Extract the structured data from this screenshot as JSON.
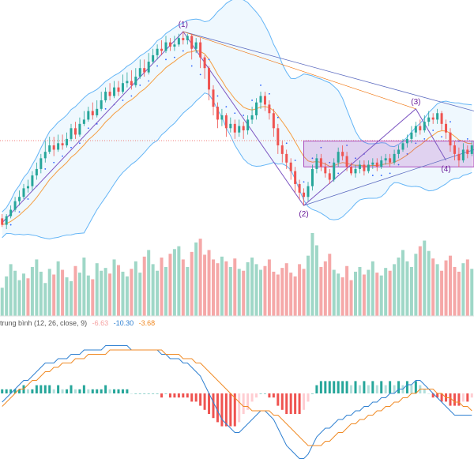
{
  "chart_data": {
    "type": "candlestick",
    "price_panel": {
      "candles": [
        [
          40,
          37,
          42,
          36
        ],
        [
          37,
          41,
          42,
          35
        ],
        [
          41,
          44,
          46,
          40
        ],
        [
          44,
          48,
          50,
          43
        ],
        [
          48,
          50,
          53,
          46
        ],
        [
          50,
          54,
          56,
          49
        ],
        [
          54,
          55,
          58,
          52
        ],
        [
          55,
          60,
          62,
          53
        ],
        [
          60,
          63,
          66,
          58
        ],
        [
          63,
          68,
          70,
          61
        ],
        [
          68,
          71,
          76,
          66
        ],
        [
          71,
          74,
          78,
          70
        ],
        [
          74,
          72,
          78,
          69
        ],
        [
          72,
          75,
          79,
          71
        ],
        [
          75,
          74,
          79,
          72
        ],
        [
          74,
          77,
          80,
          73
        ],
        [
          77,
          82,
          84,
          76
        ],
        [
          82,
          79,
          85,
          77
        ],
        [
          79,
          84,
          87,
          78
        ],
        [
          84,
          86,
          90,
          83
        ],
        [
          86,
          90,
          92,
          85
        ],
        [
          90,
          88,
          94,
          86
        ],
        [
          88,
          91,
          95,
          87
        ],
        [
          91,
          95,
          99,
          90
        ],
        [
          95,
          99,
          101,
          94
        ],
        [
          99,
          97,
          103,
          95
        ],
        [
          97,
          101,
          104,
          96
        ],
        [
          101,
          99,
          104,
          97
        ],
        [
          99,
          103,
          107,
          98
        ],
        [
          103,
          104,
          108,
          101
        ],
        [
          104,
          102,
          109,
          100
        ],
        [
          102,
          106,
          110,
          101
        ],
        [
          106,
          110,
          114,
          105
        ],
        [
          110,
          108,
          114,
          106
        ],
        [
          108,
          113,
          117,
          107
        ],
        [
          113,
          116,
          119,
          112
        ],
        [
          116,
          119,
          121,
          114
        ],
        [
          119,
          118,
          123,
          116
        ],
        [
          118,
          122,
          125,
          117
        ],
        [
          122,
          120,
          124,
          118
        ],
        [
          120,
          121,
          125,
          118
        ],
        [
          121,
          124,
          126,
          120
        ],
        [
          124,
          123,
          127,
          121
        ],
        [
          123,
          125,
          126,
          121
        ],
        [
          125,
          119,
          126,
          114
        ],
        [
          119,
          122,
          124,
          117
        ],
        [
          122,
          115,
          124,
          110
        ],
        [
          115,
          110,
          116,
          105
        ],
        [
          110,
          100,
          111,
          95
        ],
        [
          100,
          92,
          102,
          88
        ],
        [
          92,
          86,
          94,
          82
        ],
        [
          86,
          88,
          91,
          83
        ],
        [
          88,
          82,
          89,
          78
        ],
        [
          82,
          84,
          87,
          80
        ],
        [
          84,
          80,
          86,
          77
        ],
        [
          80,
          83,
          86,
          78
        ],
        [
          83,
          81,
          85,
          77
        ],
        [
          81,
          86,
          88,
          79
        ],
        [
          86,
          88,
          92,
          84
        ],
        [
          88,
          94,
          96,
          86
        ],
        [
          94,
          97,
          99,
          91
        ],
        [
          97,
          93,
          99,
          90
        ],
        [
          93,
          89,
          95,
          86
        ],
        [
          89,
          82,
          91,
          78
        ],
        [
          82,
          74,
          84,
          70
        ],
        [
          74,
          70,
          76,
          66
        ],
        [
          70,
          66,
          72,
          63
        ],
        [
          66,
          62,
          68,
          58
        ],
        [
          62,
          56,
          64,
          52
        ],
        [
          56,
          52,
          58,
          49
        ],
        [
          52,
          50,
          54,
          46
        ],
        [
          50,
          55,
          57,
          48
        ],
        [
          55,
          63,
          65,
          53
        ],
        [
          63,
          68,
          70,
          61
        ],
        [
          68,
          64,
          70,
          62
        ],
        [
          64,
          61,
          66,
          59
        ],
        [
          61,
          58,
          63,
          56
        ],
        [
          58,
          66,
          68,
          57
        ],
        [
          66,
          71,
          73,
          64
        ],
        [
          71,
          69,
          74,
          67
        ],
        [
          69,
          64,
          71,
          62
        ],
        [
          64,
          61,
          66,
          60
        ],
        [
          61,
          63,
          65,
          59
        ],
        [
          63,
          65,
          67,
          61
        ],
        [
          65,
          62,
          67,
          60
        ],
        [
          62,
          65,
          67,
          61
        ],
        [
          65,
          66,
          68,
          63
        ],
        [
          66,
          64,
          68,
          62
        ],
        [
          64,
          67,
          69,
          63
        ],
        [
          67,
          68,
          70,
          65
        ],
        [
          68,
          66,
          70,
          64
        ],
        [
          66,
          70,
          72,
          65
        ],
        [
          70,
          72,
          74,
          68
        ],
        [
          72,
          75,
          77,
          71
        ],
        [
          75,
          77,
          79,
          73
        ],
        [
          77,
          80,
          83,
          75
        ],
        [
          80,
          83,
          85,
          78
        ],
        [
          83,
          81,
          86,
          79
        ],
        [
          81,
          85,
          88,
          80
        ],
        [
          85,
          87,
          90,
          83
        ],
        [
          87,
          86,
          89,
          84
        ],
        [
          86,
          89,
          91,
          84
        ],
        [
          89,
          84,
          90,
          81
        ],
        [
          84,
          80,
          86,
          77
        ],
        [
          80,
          74,
          82,
          71
        ],
        [
          74,
          70,
          76,
          67
        ],
        [
          70,
          67,
          73,
          64
        ],
        [
          67,
          72,
          75,
          66
        ],
        [
          72,
          70,
          74,
          68
        ],
        [
          70,
          74,
          76,
          69
        ]
      ]
    },
    "wave_labels": [
      "(1)",
      "(2)",
      "(3)",
      "(4)"
    ],
    "volume_panel": {
      "values": [
        30,
        42,
        55,
        48,
        38,
        45,
        40,
        52,
        60,
        47,
        35,
        50,
        44,
        58,
        49,
        41,
        37,
        53,
        46,
        62,
        43,
        39,
        56,
        48,
        51,
        45,
        60,
        54,
        47,
        42,
        50,
        58,
        46,
        63,
        70,
        55,
        48,
        62,
        52,
        66,
        71,
        74,
        60,
        52,
        68,
        78,
        82,
        65,
        70,
        60,
        56,
        63,
        58,
        52,
        61,
        50,
        48,
        57,
        62,
        55,
        49,
        53,
        60,
        47,
        44,
        51,
        56,
        46,
        42,
        55,
        50,
        64,
        88,
        75,
        52,
        58,
        66,
        49,
        45,
        41,
        53,
        38,
        47,
        52,
        44,
        49,
        58,
        46,
        43,
        51,
        48,
        55,
        62,
        70,
        58,
        52,
        66,
        74,
        80,
        69,
        61,
        55,
        48,
        59,
        64,
        52,
        47,
        56,
        60,
        50
      ],
      "up": [
        1,
        1,
        1,
        1,
        1,
        1,
        0,
        1,
        1,
        1,
        1,
        1,
        0,
        1,
        0,
        1,
        1,
        0,
        1,
        1,
        1,
        0,
        1,
        1,
        1,
        0,
        1,
        0,
        1,
        1,
        0,
        1,
        1,
        0,
        1,
        1,
        1,
        0,
        1,
        0,
        1,
        1,
        0,
        1,
        0,
        1,
        0,
        0,
        0,
        0,
        0,
        1,
        0,
        1,
        0,
        1,
        0,
        1,
        1,
        1,
        1,
        0,
        0,
        0,
        0,
        0,
        0,
        0,
        0,
        0,
        0,
        1,
        1,
        1,
        0,
        0,
        0,
        1,
        1,
        0,
        0,
        0,
        1,
        1,
        0,
        1,
        1,
        0,
        1,
        1,
        0,
        1,
        1,
        1,
        1,
        1,
        1,
        0,
        1,
        1,
        0,
        1,
        0,
        0,
        0,
        0,
        0,
        1,
        0,
        1
      ]
    },
    "macd_panel": {
      "legend_prefix": "trung bình (12, 26, close, 9)",
      "legend_values": [
        "-6.63",
        "-10.30",
        "-3.68"
      ],
      "macd": [
        -2,
        -1,
        0,
        1,
        2,
        3,
        3,
        4,
        5,
        6,
        7,
        7,
        7,
        8,
        8,
        8,
        9,
        9,
        9,
        10,
        10,
        10,
        10,
        10,
        11,
        11,
        11,
        11,
        11,
        11,
        10,
        10,
        10,
        10,
        10,
        10,
        10,
        9,
        9,
        8,
        8,
        8,
        7,
        7,
        6,
        5,
        4,
        2,
        0,
        -2,
        -4,
        -6,
        -7,
        -8,
        -9,
        -9,
        -8,
        -7,
        -6,
        -5,
        -4,
        -4,
        -5,
        -6,
        -8,
        -10,
        -12,
        -13,
        -14,
        -15,
        -15,
        -14,
        -12,
        -10,
        -9,
        -8,
        -8,
        -7,
        -6,
        -6,
        -5,
        -5,
        -4,
        -4,
        -3,
        -3,
        -2,
        -2,
        -1,
        -1,
        0,
        0,
        1,
        1,
        2,
        2,
        3,
        3,
        2,
        1,
        0,
        -1,
        -2,
        -3,
        -4,
        -5,
        -5,
        -5,
        -5,
        -5
      ],
      "signal": [
        -3,
        -2,
        -1,
        0,
        1,
        1,
        2,
        3,
        3,
        4,
        5,
        5,
        6,
        6,
        7,
        7,
        7,
        8,
        8,
        8,
        9,
        9,
        9,
        9,
        9,
        10,
        10,
        10,
        10,
        10,
        10,
        10,
        10,
        10,
        10,
        10,
        10,
        10,
        9,
        9,
        9,
        9,
        8,
        8,
        8,
        7,
        7,
        6,
        5,
        4,
        3,
        2,
        1,
        0,
        -1,
        -2,
        -3,
        -3,
        -4,
        -4,
        -4,
        -4,
        -4,
        -5,
        -5,
        -6,
        -7,
        -8,
        -9,
        -10,
        -11,
        -12,
        -12,
        -12,
        -12,
        -11,
        -11,
        -10,
        -9,
        -9,
        -8,
        -7,
        -7,
        -6,
        -6,
        -5,
        -5,
        -4,
        -4,
        -3,
        -3,
        -2,
        -2,
        -1,
        -1,
        0,
        0,
        1,
        1,
        1,
        1,
        0,
        0,
        -1,
        -1,
        -2,
        -2,
        -3,
        -3,
        -4
      ],
      "histogram": [
        1,
        1,
        1,
        1,
        1,
        2,
        1,
        1,
        2,
        2,
        2,
        2,
        1,
        2,
        1,
        1,
        2,
        1,
        1,
        2,
        1,
        1,
        1,
        1,
        2,
        1,
        1,
        1,
        1,
        1,
        0,
        0,
        0,
        0,
        0,
        0,
        0,
        -1,
        0,
        -1,
        -1,
        -1,
        -1,
        -1,
        -2,
        -2,
        -3,
        -4,
        -5,
        -6,
        -7,
        -8,
        -8,
        -8,
        -8,
        -7,
        -5,
        -4,
        -2,
        -1,
        0,
        0,
        -1,
        -1,
        -3,
        -4,
        -5,
        -5,
        -5,
        -5,
        -4,
        -2,
        0,
        2,
        3,
        3,
        3,
        3,
        3,
        3,
        3,
        2,
        3,
        2,
        3,
        2,
        3,
        2,
        3,
        2,
        3,
        2,
        3,
        2,
        3,
        2,
        3,
        2,
        1,
        0,
        -1,
        -1,
        -2,
        -2,
        -3,
        -3,
        -3,
        -2,
        -2,
        -1
      ]
    }
  }
}
